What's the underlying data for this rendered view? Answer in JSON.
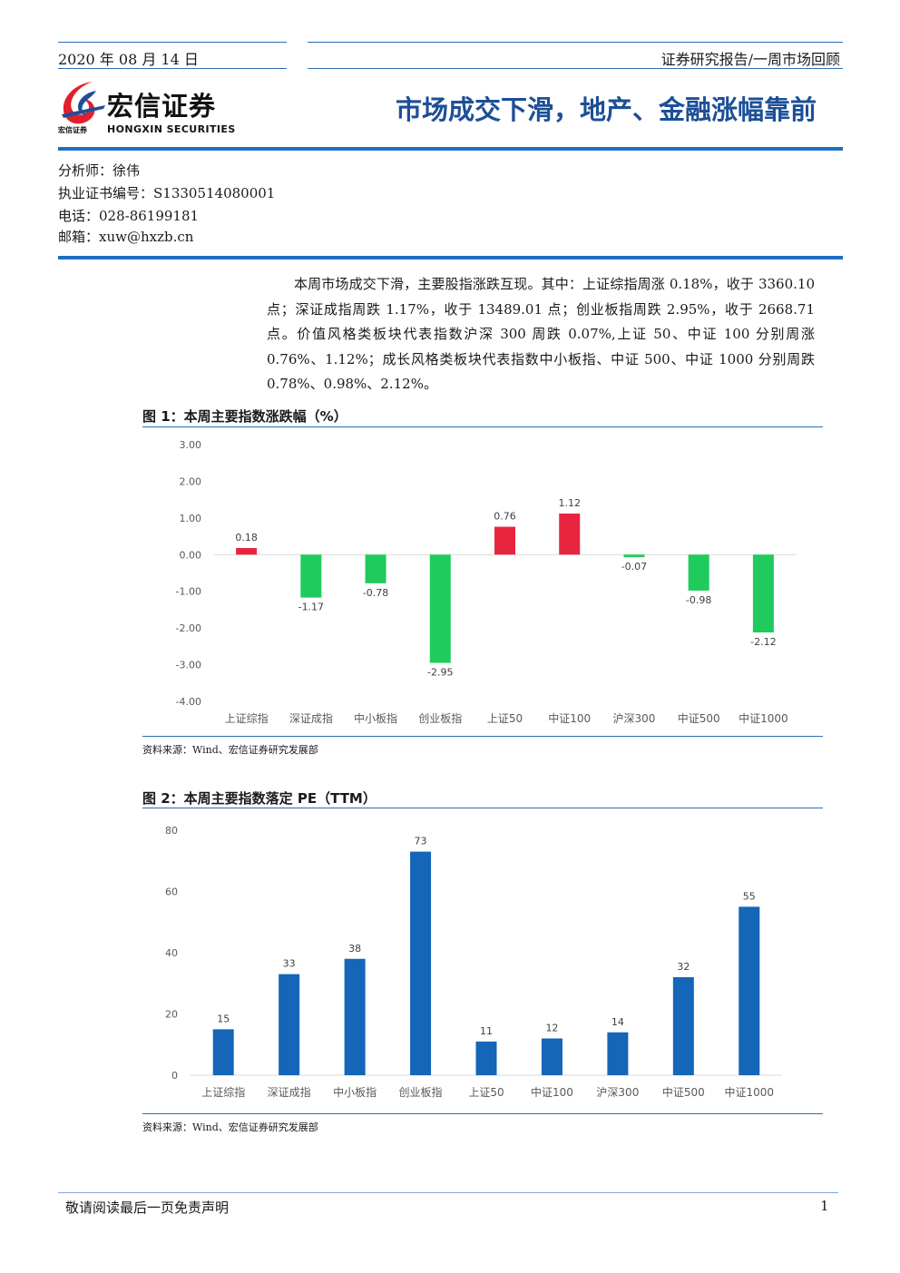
{
  "header": {
    "date": "2020 年 08 月 14 日",
    "report_type": "证券研究报告/一周市场回顾",
    "logo_cn": "宏信证券",
    "logo_small": "宏信证券",
    "logo_en": "HONGXIN SECURITIES",
    "title": "市场成交下滑，地产、金融涨幅靠前"
  },
  "analyst": {
    "name_line": "分析师：徐伟",
    "cert_line": "执业证书编号：S1330514080001",
    "phone_line": "电话：028-86199181",
    "email_line": "邮箱：xuw@hxzb.cn"
  },
  "summary": "本周市场成交下滑，主要股指涨跌互现。其中：上证综指周涨 0.18%，收于 3360.10 点；深证成指周跌 1.17%，收于 13489.01 点；创业板指周跌 2.95%，收于 2668.71 点。价值风格类板块代表指数沪深 300 周跌 0.07%,上证 50、中证 100 分别周涨 0.76%、1.12%；成长风格类板块代表指数中小板指、中证 500、中证 1000 分别周跌 0.78%、0.98%、2.12%。",
  "figures": [
    {
      "title": "图 1：本周主要指数涨跌幅（%）",
      "source": "资料来源：Wind、宏信证券研究发展部"
    },
    {
      "title": "图 2：本周主要指数落定 PE（TTM）",
      "source": "资料来源：Wind、宏信证券研究发展部"
    }
  ],
  "colors": {
    "accent_blue": "#1f6fc0",
    "up_red": "#e8253f",
    "down_green": "#1ecb5c",
    "bar_blue": "#1565b8"
  },
  "chart_data": [
    {
      "type": "bar",
      "categories": [
        "上证综指",
        "深证成指",
        "中小板指",
        "创业板指",
        "上证50",
        "中证100",
        "沪深300",
        "中证500",
        "中证1000"
      ],
      "values": [
        0.18,
        -1.17,
        -0.78,
        -2.95,
        0.76,
        1.12,
        -0.07,
        -0.98,
        -2.12
      ],
      "data_labels": [
        "0.18",
        "-1.17",
        "-0.78",
        "-2.95",
        "0.76",
        "1.12",
        "-0.07",
        "-0.98",
        "-2.12"
      ],
      "ylim": [
        -4,
        3
      ],
      "yticks": [
        "3.00",
        "2.00",
        "1.00",
        "0.00",
        "-1.00",
        "-2.00",
        "-3.00",
        "-4.00"
      ],
      "grid": false,
      "legend": "none",
      "positive_color": "#e8253f",
      "negative_color": "#1ecb5c"
    },
    {
      "type": "bar",
      "categories": [
        "上证综指",
        "深证成指",
        "中小板指",
        "创业板指",
        "上证50",
        "中证100",
        "沪深300",
        "中证500",
        "中证1000"
      ],
      "values": [
        15,
        33,
        38,
        73,
        11,
        12,
        14,
        32,
        55
      ],
      "data_labels": [
        "15",
        "33",
        "38",
        "73",
        "11",
        "12",
        "14",
        "32",
        "55"
      ],
      "ylim": [
        0,
        80
      ],
      "yticks": [
        "80",
        "60",
        "40",
        "20",
        "0"
      ],
      "grid": false,
      "legend": "none",
      "color": "#1565b8"
    }
  ],
  "footer": {
    "disclaimer": "敬请阅读最后一页免责声明",
    "page": "1"
  }
}
